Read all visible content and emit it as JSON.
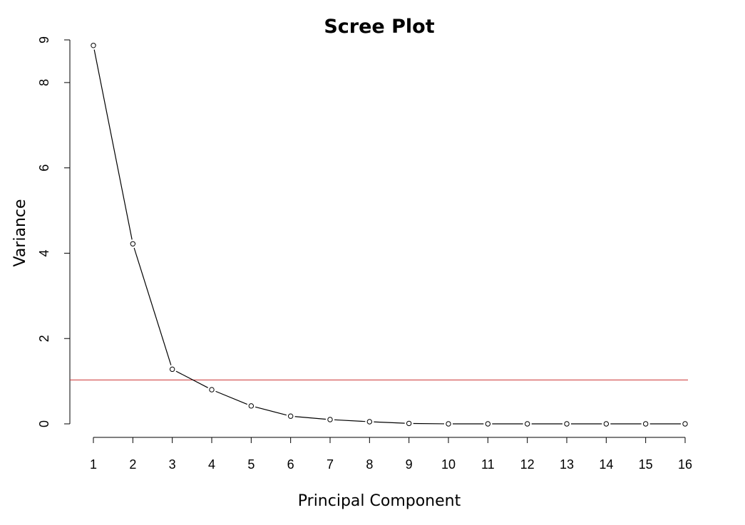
{
  "chart_data": {
    "type": "line",
    "title": "Scree Plot",
    "xlabel": "Principal Component",
    "ylabel": "Variance",
    "x": [
      1,
      2,
      3,
      4,
      5,
      6,
      7,
      8,
      9,
      10,
      11,
      12,
      13,
      14,
      15,
      16
    ],
    "series": [
      {
        "values": [
          8.87,
          4.22,
          1.28,
          0.8,
          0.42,
          0.18,
          0.1,
          0.05,
          0.01,
          0.0,
          0.0,
          0.0,
          0.0,
          0.0,
          0.0,
          0.0
        ]
      }
    ],
    "x_ticks": [
      "1",
      "2",
      "3",
      "4",
      "5",
      "6",
      "7",
      "8",
      "9",
      "10",
      "11",
      "12",
      "13",
      "14",
      "15",
      "16"
    ],
    "y_ticks": [
      "0",
      "2",
      "4",
      "6",
      "8"
    ],
    "ylim": [
      0,
      9
    ],
    "reference_line": {
      "y": 1.03,
      "color": "#cc3333"
    },
    "line_color": "#000000",
    "grid": false,
    "legend": "none"
  }
}
